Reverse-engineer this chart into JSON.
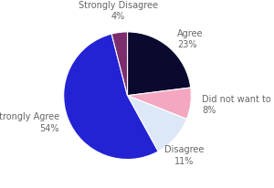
{
  "slices": [
    {
      "label": "Agree",
      "pct": 23,
      "color": "#0a0a2e"
    },
    {
      "label": "Did not want to a",
      "pct": 8,
      "color": "#f4a7c0"
    },
    {
      "label": "Disagree",
      "pct": 11,
      "color": "#dce8f7"
    },
    {
      "label": "Strongly Agree",
      "pct": 54,
      "color": "#2323d4"
    },
    {
      "label": "Strongly Disagree",
      "pct": 4,
      "color": "#7b2d6e"
    }
  ],
  "startangle": 90,
  "background_color": "#ffffff",
  "label_fontsize": 7.0,
  "label_color": "#666666",
  "pct_color": "#666666"
}
